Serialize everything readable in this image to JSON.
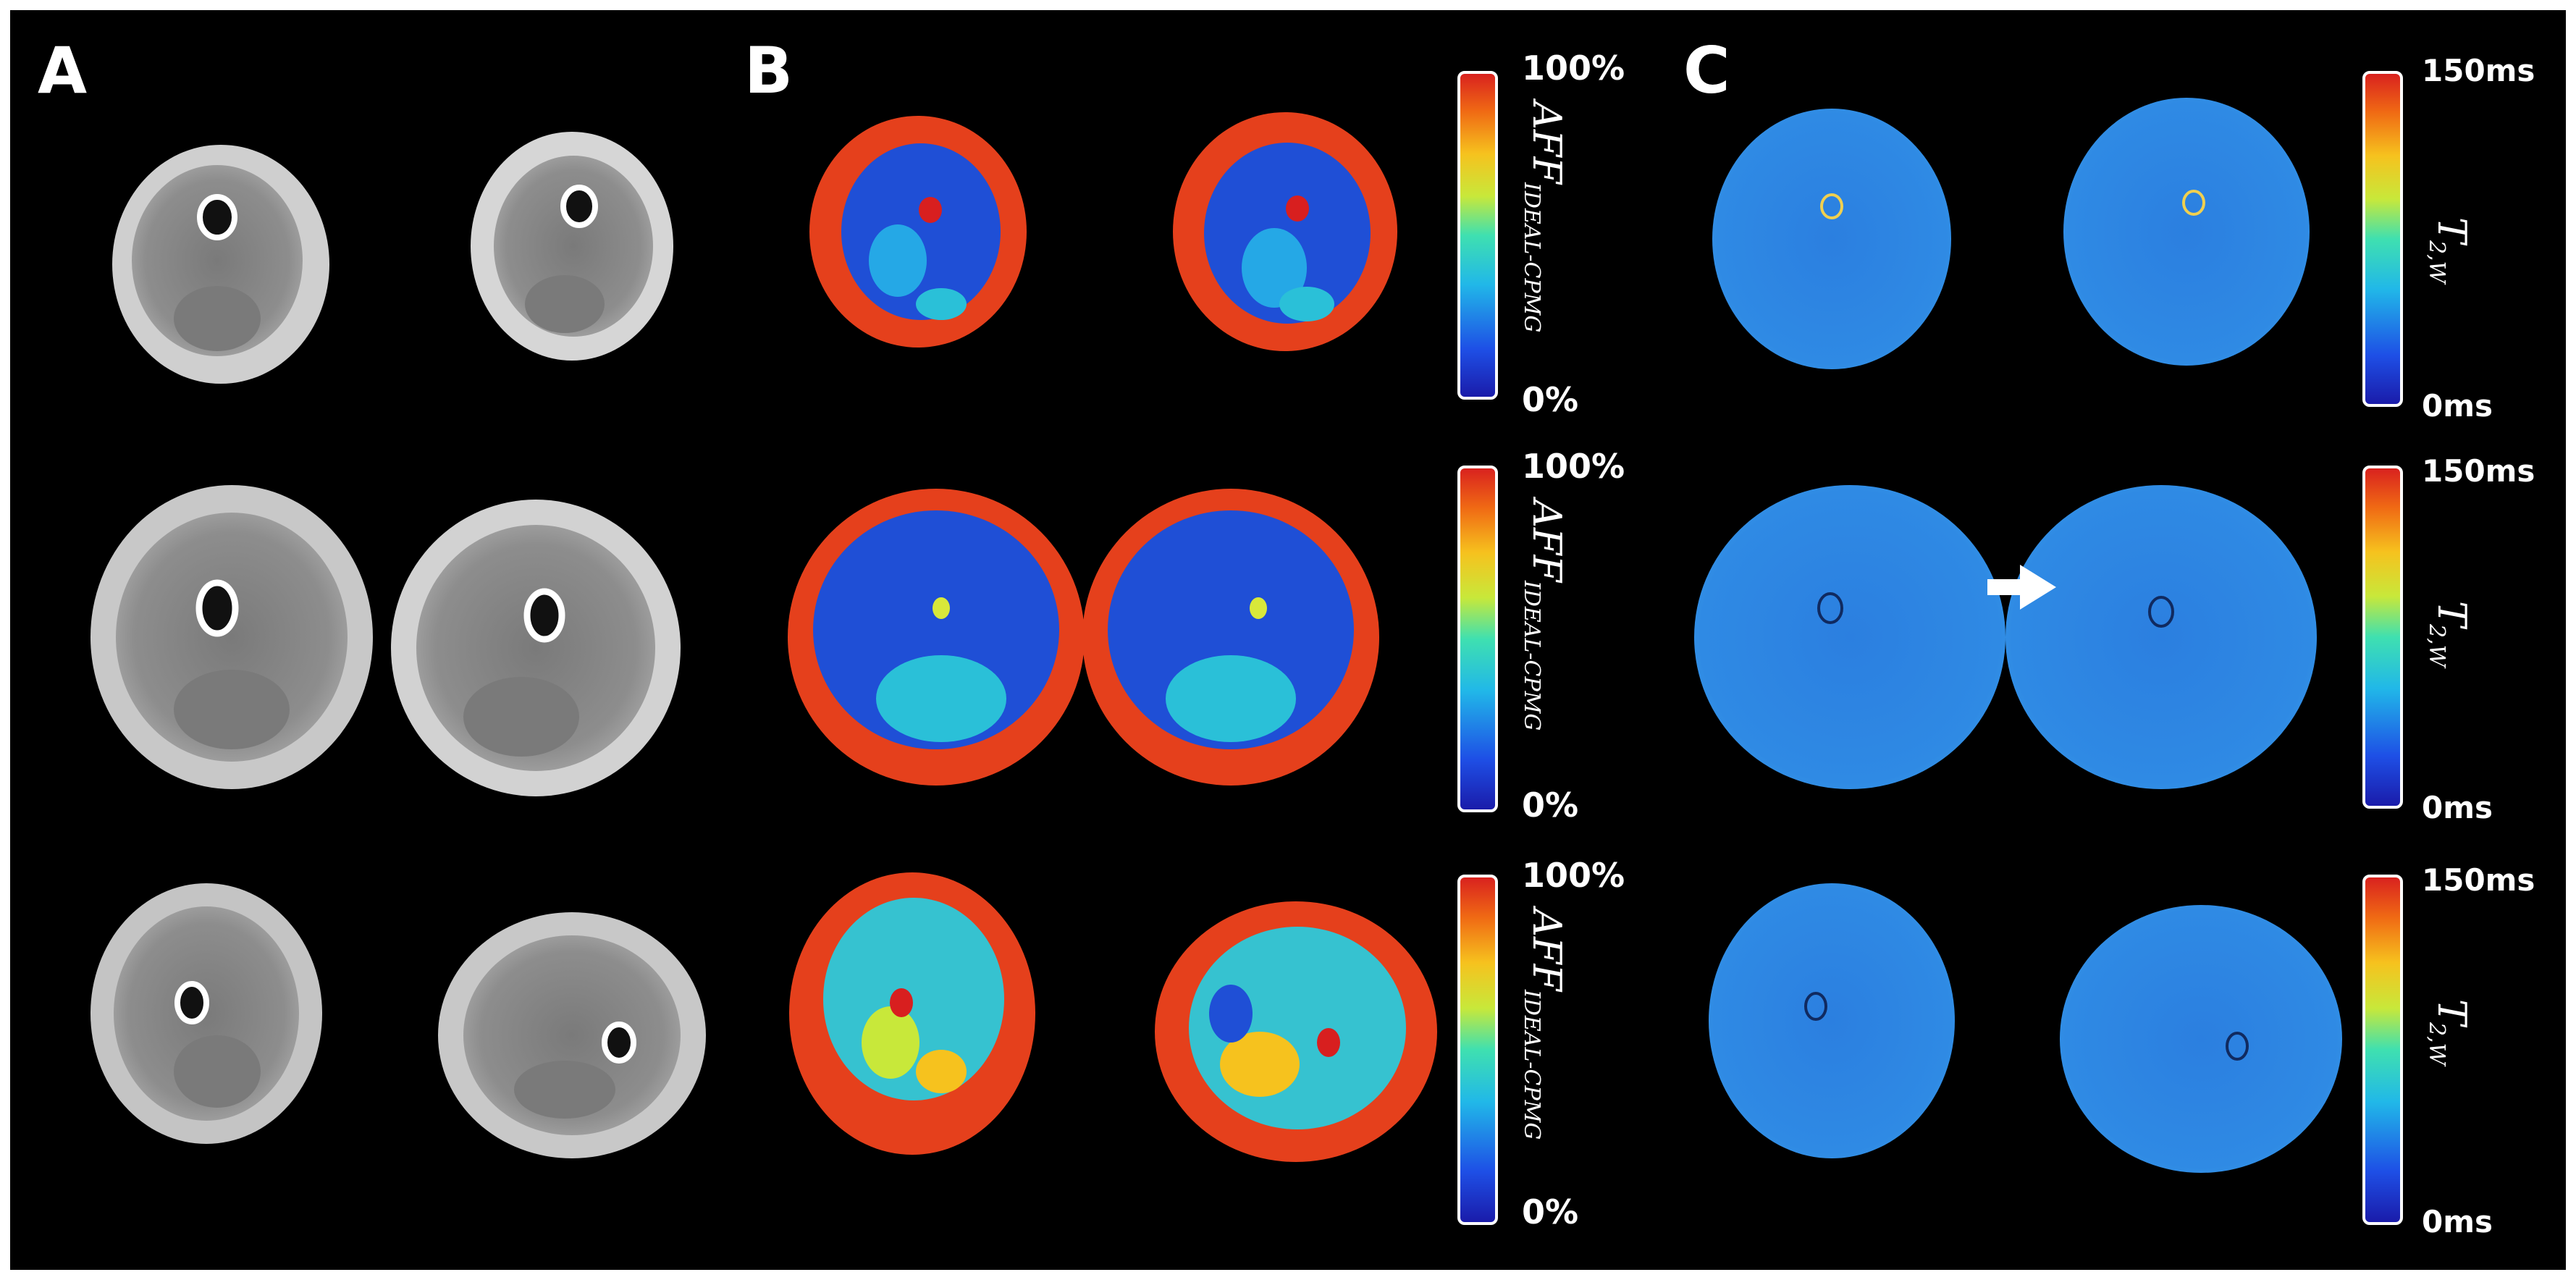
{
  "panels": {
    "a": {
      "label": "A"
    },
    "b": {
      "label": "B",
      "colorbar": {
        "max_label": "100%",
        "min_label": "0%",
        "quantity": "AFF",
        "subscript": "IDEAL-CPMG"
      }
    },
    "c": {
      "label": "C",
      "colorbar": {
        "max_label": "150ms",
        "min_label": "0ms",
        "quantity": "T",
        "subscript": "2,W"
      }
    }
  },
  "annotations": {
    "arrow": "white-arrow-icon"
  },
  "colors": {
    "background": "#000000",
    "frame": "#ffffff",
    "fat_red": "#e5401c",
    "muscle_blue": "#1f4fd6",
    "t2_blue": "#2f86e0",
    "gray_tissue": "#8e8e8e",
    "subcutaneous_gray": "#c9c9c9"
  }
}
